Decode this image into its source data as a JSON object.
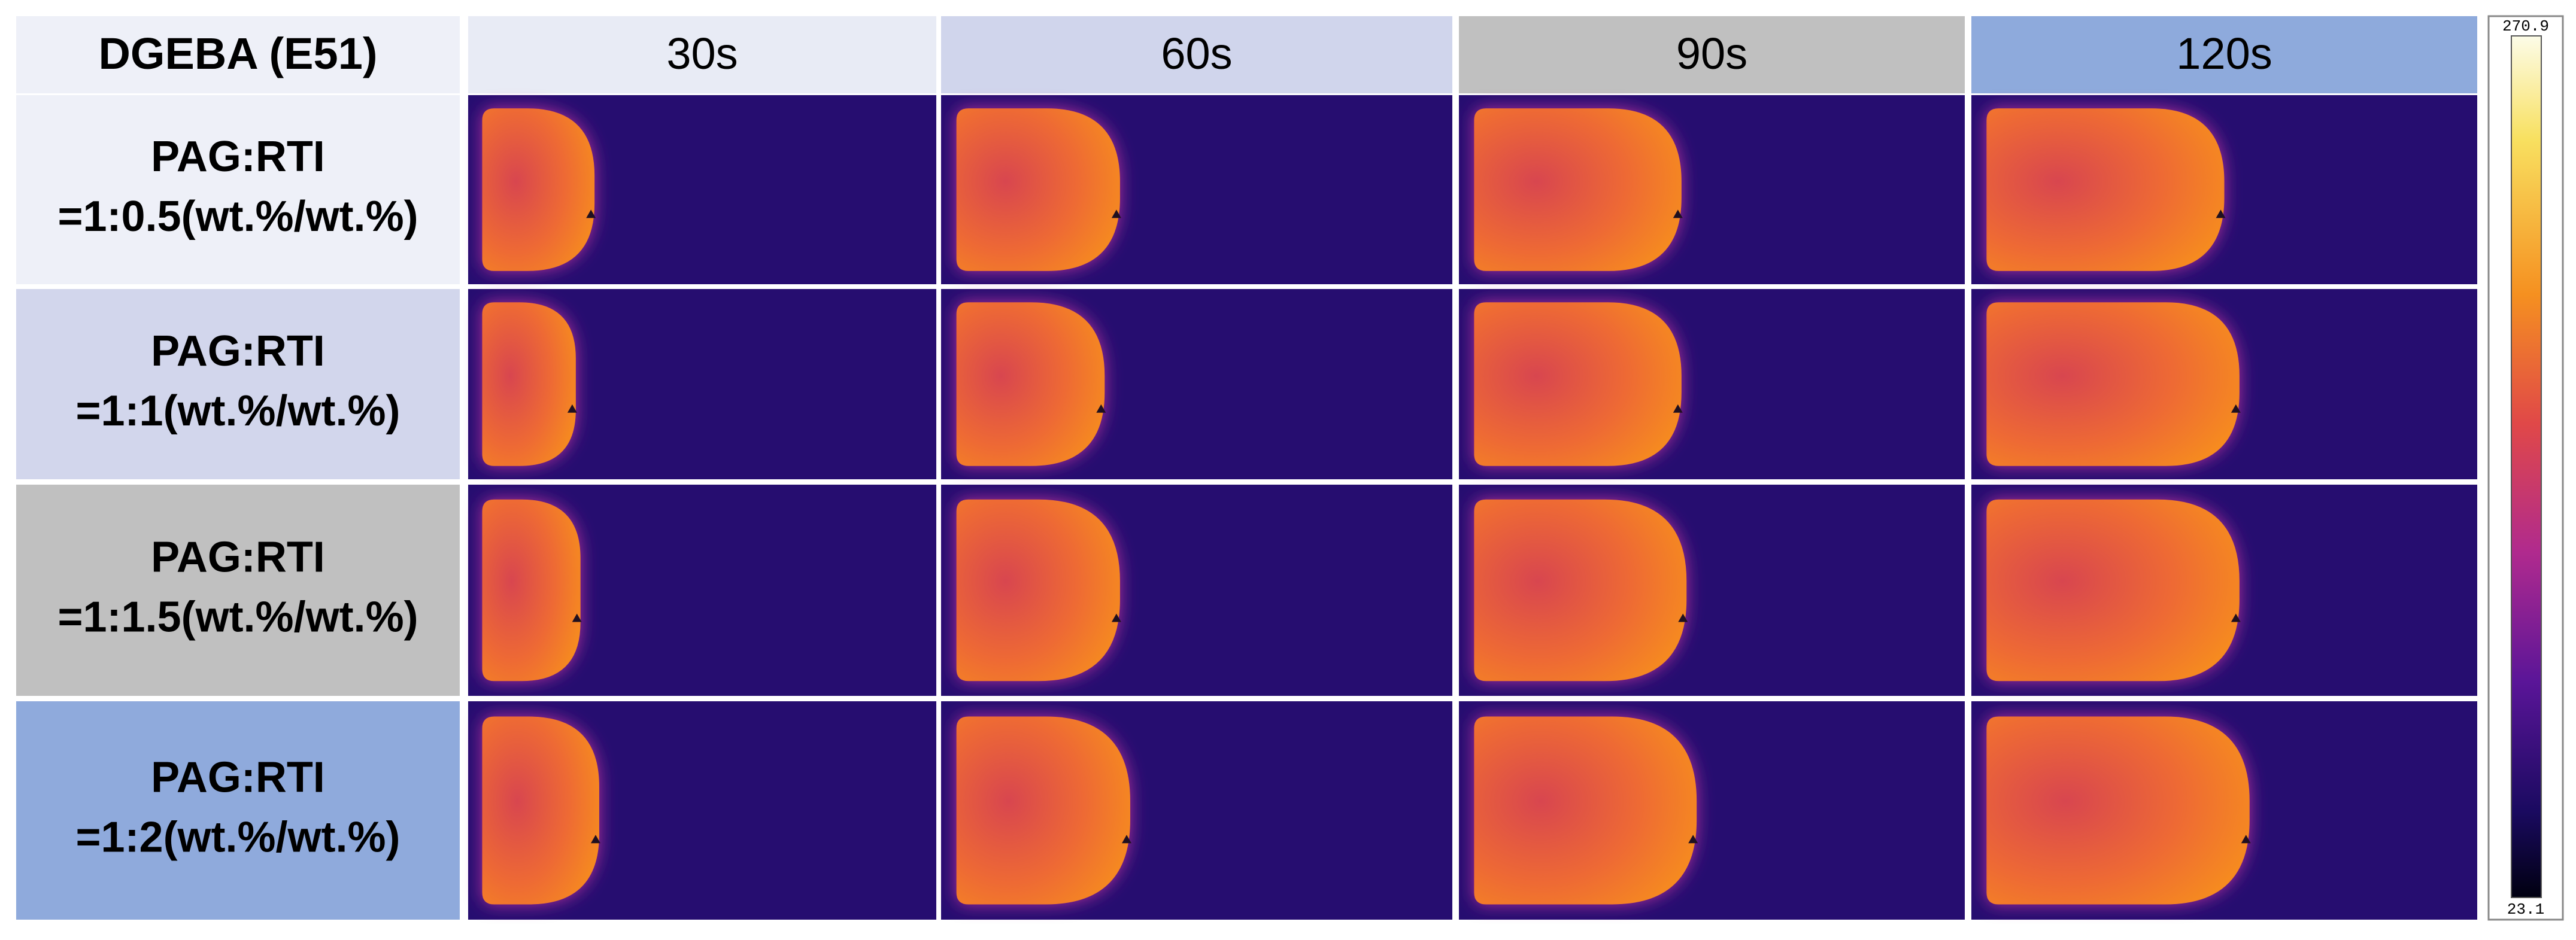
{
  "header": {
    "corner": "DGEBA (E51)",
    "columns": [
      "30s",
      "60s",
      "90s",
      "120s"
    ]
  },
  "rows": [
    {
      "line1": "PAG:RTI",
      "line2": "=1:0.5(wt.%/wt.%)"
    },
    {
      "line1": "PAG:RTI",
      "line2": "=1:1(wt.%/wt.%)"
    },
    {
      "line1": "PAG:RTI",
      "line2": "=1:1.5(wt.%/wt.%)"
    },
    {
      "line1": "PAG:RTI",
      "line2": "=1:2(wt.%/wt.%)"
    }
  ],
  "colorbar": {
    "max": 270.9,
    "min": 23.1
  }
}
